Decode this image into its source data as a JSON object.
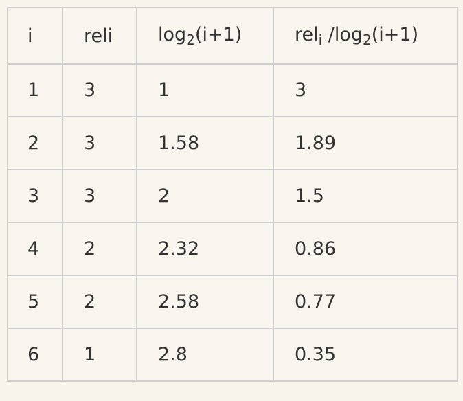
{
  "table": {
    "header": [
      [
        {
          "text": "i"
        }
      ],
      [
        {
          "text": "reli"
        }
      ],
      [
        {
          "text": "log"
        },
        {
          "sub": "2"
        },
        {
          "text": "(i+1)"
        }
      ],
      [
        {
          "text": "rel"
        },
        {
          "sub": "i"
        },
        {
          "text": " /log"
        },
        {
          "sub": "2"
        },
        {
          "text": "(i+1)"
        }
      ]
    ],
    "rows": [
      [
        "1",
        "3",
        "1",
        "3"
      ],
      [
        "2",
        "3",
        "1.58",
        "1.89"
      ],
      [
        "3",
        "3",
        "2",
        "1.5"
      ],
      [
        "4",
        "2",
        "2.32",
        "0.86"
      ],
      [
        "5",
        "2",
        "2.58",
        "0.77"
      ],
      [
        "6",
        "1",
        "2.8",
        "0.35"
      ]
    ]
  }
}
